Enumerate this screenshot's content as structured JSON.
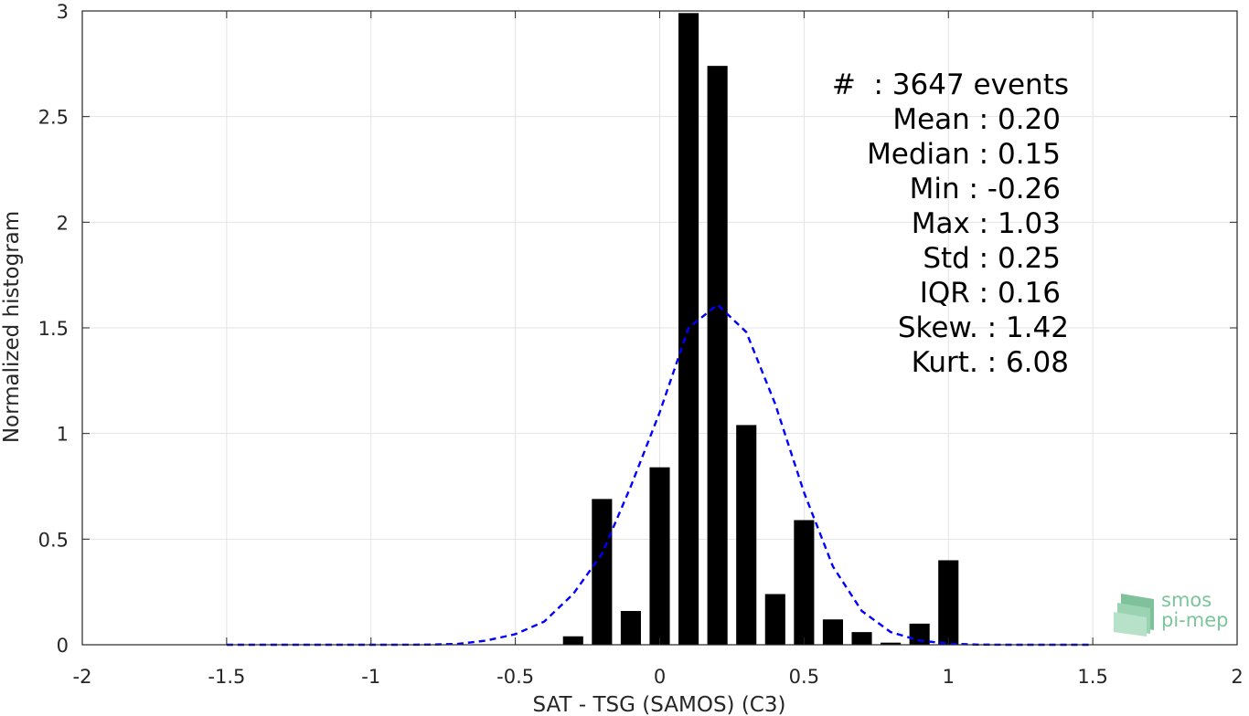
{
  "chart_data": {
    "type": "bar",
    "xlabel": "SAT - TSG (SAMOS) (C3)",
    "ylabel": "Normalized histogram",
    "xlim": [
      -2,
      2
    ],
    "ylim": [
      0,
      3
    ],
    "grid": true,
    "x_ticks": [
      -2,
      -1.5,
      -1,
      -0.5,
      0,
      0.5,
      1,
      1.5,
      2
    ],
    "x_tick_labels": [
      "-2",
      "-1.5",
      "-1",
      "-0.5",
      "0",
      "0.5",
      "1",
      "1.5",
      "2"
    ],
    "y_ticks": [
      0,
      0.5,
      1,
      1.5,
      2,
      2.5,
      3
    ],
    "y_tick_labels": [
      "0",
      "0.5",
      "1",
      "1.5",
      "2",
      "2.5",
      "3"
    ],
    "bar_width": 0.07,
    "bars": {
      "x": [
        -0.3,
        -0.2,
        -0.1,
        0.0,
        0.1,
        0.2,
        0.3,
        0.4,
        0.5,
        0.6,
        0.7,
        0.8,
        0.9,
        1.0
      ],
      "values": [
        0.04,
        0.69,
        0.16,
        0.84,
        2.99,
        2.74,
        1.04,
        0.24,
        0.59,
        0.12,
        0.06,
        0.01,
        0.1,
        0.4
      ],
      "color": "#000000"
    },
    "fit_line": {
      "style": "dashed",
      "color": "#0000ff",
      "x": [
        -1.5,
        -1.4,
        -1.3,
        -1.2,
        -1.1,
        -1.0,
        -0.9,
        -0.8,
        -0.7,
        -0.6,
        -0.5,
        -0.4,
        -0.3,
        -0.2,
        -0.1,
        0.0,
        0.1,
        0.2,
        0.3,
        0.4,
        0.5,
        0.6,
        0.7,
        0.8,
        0.9,
        1.0,
        1.1,
        1.2,
        1.3,
        1.4,
        1.5
      ],
      "y": [
        0,
        0,
        0,
        0,
        0,
        0,
        0,
        0.001,
        0.004,
        0.02,
        0.05,
        0.11,
        0.24,
        0.43,
        0.75,
        1.1,
        1.5,
        1.61,
        1.48,
        1.14,
        0.72,
        0.37,
        0.16,
        0.06,
        0.02,
        0.005,
        0.001,
        0,
        0,
        0,
        0
      ]
    }
  },
  "stats": {
    "events": "#  : 3647 events",
    "mean": "Mean : 0.20",
    "median": "Median : 0.15",
    "min": "Min : -0.26",
    "max": "Max : 1.03",
    "std": "Std : 0.25",
    "iqr": "IQR : 0.16",
    "skew": "Skew. : 1.42",
    "kurt": "Kurt. : 6.08"
  },
  "logo": {
    "line1": "smos",
    "line2": "pi-mep",
    "color": "#7cc59a"
  }
}
